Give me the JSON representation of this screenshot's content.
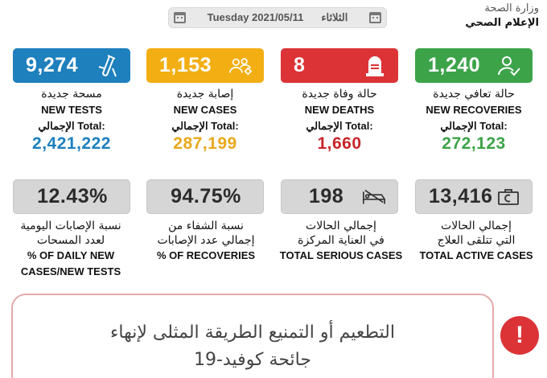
{
  "ministry": {
    "line1": "وزارة الصحة",
    "line2": "الإعلام الصحي"
  },
  "date": {
    "english": "Tuesday 2021/05/11",
    "arabic": "الثلاثاء"
  },
  "top_cards": {
    "tests": {
      "value": "9,274",
      "ar": "مسحة جديدة",
      "en": "NEW TESTS",
      "total_label": "الإجمالي Total:",
      "total": "2,421,222",
      "color": "#1e80bd",
      "icon": "test-tube-icon"
    },
    "cases": {
      "value": "1,153",
      "ar": "إصابة جديدة",
      "en": "NEW CASES",
      "total_label": "الإجمالي Total:",
      "total": "287,199",
      "color": "#f2ae13",
      "icon": "people-virus-icon"
    },
    "deaths": {
      "value": "8",
      "ar": "حالة وفاة جديدة",
      "en": "NEW DEATHS",
      "total_label": "الإجمالي Total:",
      "total": "1,660",
      "color": "#dc3337",
      "icon": "tombstone-icon"
    },
    "recoveries": {
      "value": "1,240",
      "ar": "حالة تعافي جديدة",
      "en": "NEW RECOVERIES",
      "total_label": "الإجمالي Total:",
      "total": "272,123",
      "color": "#3ca349",
      "icon": "user-check-icon"
    }
  },
  "bottom_cards": {
    "daily_rate": {
      "value": "12.43%",
      "ar1": "نسبة الإصابات اليومية",
      "ar2": "لعدد المسحات",
      "en1": "% OF DAILY NEW",
      "en2": "CASES/NEW TESTS"
    },
    "recovery_rate": {
      "value": "94.75%",
      "ar1": "نسبة الشفاء من",
      "ar2": "إجمالي عدد الإصابات",
      "en1": "% OF RECOVERIES"
    },
    "serious": {
      "value": "198",
      "ar1": "إجمالي الحالات",
      "ar2": "في العناية المركزة",
      "en1": "TOTAL SERIOUS CASES",
      "icon": "hospital-bed-icon"
    },
    "active": {
      "value": "13,416",
      "ar1": "إجمالي الحالات",
      "ar2": "التي تتلقى العلاج",
      "en1": "TOTAL ACTIVE CASES",
      "icon": "medicine-box-icon"
    }
  },
  "banner": {
    "line1": "التطعيم أو التمنيع الطريقة المثلى لإنهاء",
    "line2": "جائحة كوفيد-19",
    "icon": "exclamation-icon"
  }
}
